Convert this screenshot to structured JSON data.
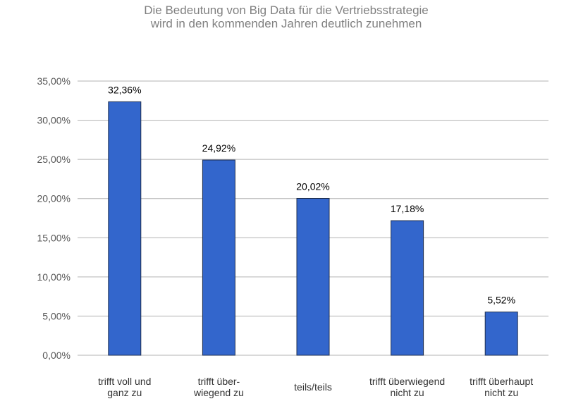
{
  "chart_data": {
    "type": "bar",
    "title": [
      "Die Bedeutung von Big Data für die Vertriebsstrategie",
      "wird in den kommenden Jahren deutlich zunehmen"
    ],
    "categories": [
      [
        "trifft voll und",
        "ganz zu"
      ],
      [
        "trifft über-",
        "wiegend zu"
      ],
      [
        "teils/teils"
      ],
      [
        "trifft überwiegend",
        "nicht zu"
      ],
      [
        "trifft überhaupt",
        "nicht zu"
      ]
    ],
    "values": [
      32.36,
      24.92,
      20.02,
      17.18,
      5.52
    ],
    "data_labels": [
      "32,36%",
      "24,92%",
      "20,02%",
      "17,18%",
      "5,52%"
    ],
    "yticks": [
      0,
      5,
      10,
      15,
      20,
      25,
      30,
      35
    ],
    "ytick_labels": [
      "0,00%",
      "5,00%",
      "10,00%",
      "15,00%",
      "20,00%",
      "25,00%",
      "30,00%",
      "35,00%"
    ],
    "ylim": [
      0,
      35
    ],
    "xlabel": "",
    "ylabel": "",
    "grid": true,
    "legend": "none",
    "colors": {
      "bar": "#3366cc",
      "bar_stroke": "#1f2f4f",
      "grid": "#b3b3b3",
      "axis_text": "#555555",
      "title": "#808080",
      "data_label": "#000000",
      "category_label": "#333333"
    }
  }
}
